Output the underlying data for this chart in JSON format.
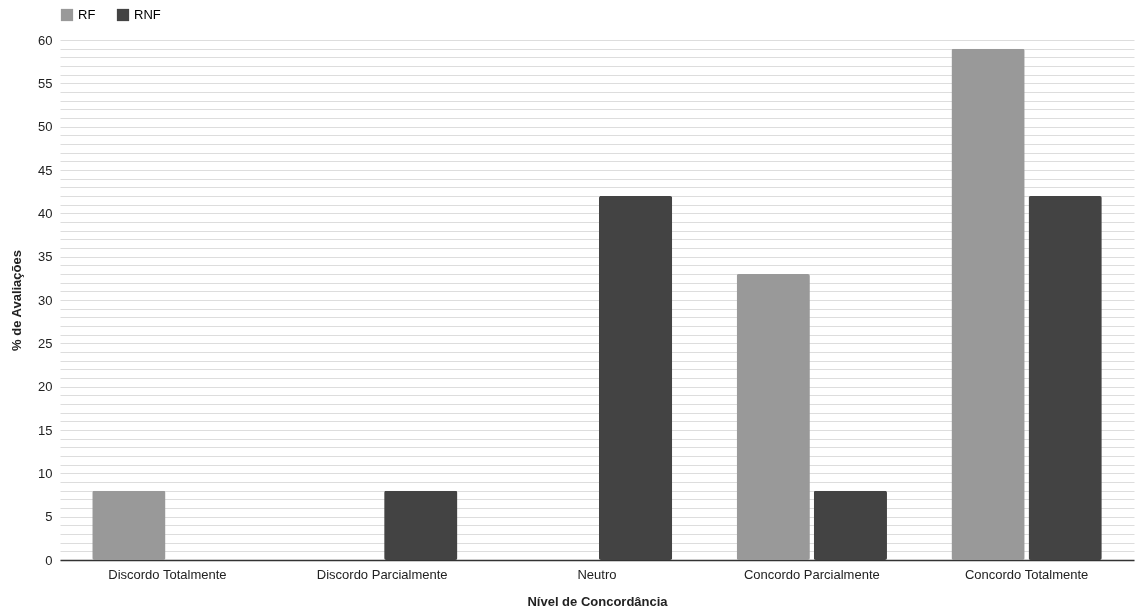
{
  "chart_data": {
    "type": "bar",
    "xlabel": "Nível de Concordância",
    "ylabel": "% de Avaliações",
    "categories": [
      "Discordo Totalmente",
      "Discordo Parcialmente",
      "Neutro",
      "Concordo Parcialmente",
      "Concordo Totalmente"
    ],
    "series": [
      {
        "name": "RF",
        "color": "#999999",
        "values": [
          8,
          null,
          null,
          33,
          59
        ]
      },
      {
        "name": "RNF",
        "color": "#434343",
        "values": [
          null,
          8,
          42,
          8,
          42
        ]
      }
    ],
    "ylim": [
      0,
      60
    ],
    "yticks": [
      0,
      {
        "value": 1,
        "label": null
      },
      {
        "value": 2,
        "label": null
      },
      {
        "value": 3,
        "label": null
      },
      {
        "value": 4,
        "label": null
      },
      5,
      {
        "value": 6,
        "label": null
      },
      {
        "value": 7,
        "label": null
      },
      {
        "value": 8,
        "label": null
      },
      {
        "value": 9,
        "label": null
      },
      10,
      {
        "value": 11,
        "label": null
      },
      {
        "value": 12,
        "label": null
      },
      {
        "value": 13,
        "label": null
      },
      {
        "value": 14,
        "label": null
      },
      15,
      {
        "value": 16,
        "label": null
      },
      {
        "value": 17,
        "label": null
      },
      {
        "value": 18,
        "label": null
      },
      {
        "value": 19,
        "label": null
      },
      20,
      {
        "value": 21,
        "label": null
      },
      {
        "value": 22,
        "label": null
      },
      {
        "value": 23,
        "label": null
      },
      {
        "value": 24,
        "label": null
      },
      25,
      {
        "value": 26,
        "label": null
      },
      {
        "value": 27,
        "label": null
      },
      {
        "value": 28,
        "label": null
      },
      {
        "value": 29,
        "label": null
      },
      30,
      {
        "value": 31,
        "label": null
      },
      {
        "value": 32,
        "label": null
      },
      {
        "value": 33,
        "label": null
      },
      {
        "value": 34,
        "label": null
      },
      35,
      {
        "value": 36,
        "label": null
      },
      {
        "value": 37,
        "label": null
      },
      {
        "value": 38,
        "label": null
      },
      {
        "value": 39,
        "label": null
      },
      40,
      {
        "value": 41,
        "label": null
      },
      {
        "value": 42,
        "label": null
      },
      {
        "value": 43,
        "label": null
      },
      {
        "value": 44,
        "label": null
      },
      45,
      {
        "value": 46,
        "label": null
      },
      {
        "value": 47,
        "label": null
      },
      {
        "value": 48,
        "label": null
      },
      {
        "value": 49,
        "label": null
      },
      50,
      {
        "value": 51,
        "label": null
      },
      {
        "value": 52,
        "label": null
      },
      {
        "value": 53,
        "label": null
      },
      {
        "value": 54,
        "label": null
      },
      55,
      {
        "value": 56,
        "label": null
      },
      {
        "value": 57,
        "label": null
      },
      {
        "value": 58,
        "label": null
      },
      {
        "value": 59,
        "label": null
      },
      60
    ],
    "grid": "y",
    "legend": "top"
  }
}
